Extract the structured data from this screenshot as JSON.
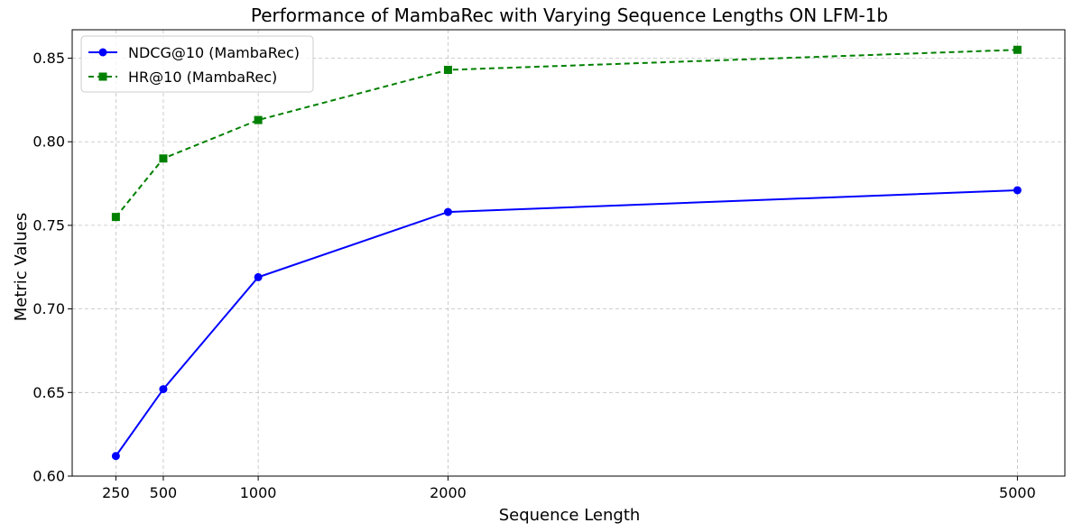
{
  "chart_data": {
    "type": "line",
    "title": "Performance of MambaRec with Varying Sequence Lengths ON LFM-1b",
    "xlabel": "Sequence Length",
    "ylabel": "Metric Values",
    "x": [
      250,
      500,
      1000,
      2000,
      5000
    ],
    "x_ticks": [
      "250",
      "500",
      "1000",
      "2000",
      "5000"
    ],
    "xlim": [
      20,
      5250
    ],
    "ylim": [
      0.6,
      0.867
    ],
    "y_ticks": [
      "0.60",
      "0.65",
      "0.70",
      "0.75",
      "0.80",
      "0.85"
    ],
    "y_tick_values": [
      0.6,
      0.65,
      0.7,
      0.75,
      0.8,
      0.85
    ],
    "grid": true,
    "legend_position": "top-left",
    "series": [
      {
        "name": "NDCG@10 (MambaRec)",
        "values": [
          0.612,
          0.652,
          0.719,
          0.758,
          0.771
        ],
        "color": "#0000ff",
        "line_style": "solid",
        "marker": "circle"
      },
      {
        "name": "HR@10 (MambaRec)",
        "values": [
          0.755,
          0.79,
          0.813,
          0.843,
          0.855
        ],
        "color": "#008000",
        "line_style": "dashed",
        "marker": "square"
      }
    ]
  }
}
